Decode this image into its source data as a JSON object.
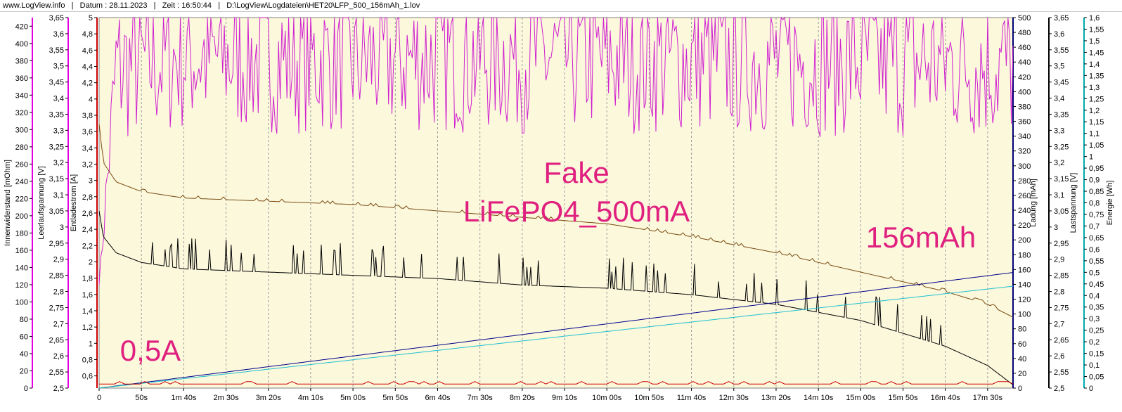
{
  "header": {
    "site": "www.LogView.info",
    "sep": "|",
    "date": "Datum : 28.11.2023",
    "time": "Zeit : 16:50:44",
    "path": "D:\\LogView\\Logdateien\\HET20\\LFP_500_156mAh_1.lov"
  },
  "chart_data": {
    "type": "line",
    "background": "#fbf8dc",
    "grid": "vertical dashed",
    "x_ticks": [
      "0",
      "50s",
      "1m 40s",
      "2m 30s",
      "3m 20s",
      "4m 10s",
      "5m 00s",
      "5m 50s",
      "6m 40s",
      "7m 30s",
      "8m 20s",
      "9m 10s",
      "10m 00s",
      "10m 50s",
      "11m 40s",
      "12m 30s",
      "13m 20s",
      "14m 10s",
      "15m 00s",
      "15m 50s",
      "16m 40s",
      "17m 30s"
    ],
    "x_range_s": [
      0,
      1080
    ],
    "axes": [
      {
        "id": "ir",
        "label": "Innenwiderstand [mOhm]",
        "color": "#e000e0",
        "side": "left",
        "range": [
          0,
          430
        ],
        "ticks": [
          "0",
          "20",
          "40",
          "60",
          "80",
          "100",
          "120",
          "140",
          "160",
          "180",
          "200",
          "220",
          "240",
          "260",
          "280",
          "300",
          "320",
          "340",
          "360",
          "380",
          "400",
          "420"
        ]
      },
      {
        "id": "ocv",
        "label": "Leerlaufspannung [V]",
        "color": "#e000e0",
        "side": "left",
        "range": [
          2.5,
          3.65
        ],
        "ticks": [
          "2,5",
          "2,55",
          "2,6",
          "2,65",
          "2,7",
          "2,75",
          "2,8",
          "2,85",
          "2,9",
          "2,95",
          "3",
          "3,05",
          "3,1",
          "3,15",
          "3,2",
          "3,25",
          "3,3",
          "3,35",
          "3,4",
          "3,45",
          "3,5",
          "3,55",
          "3,6",
          "3,65"
        ]
      },
      {
        "id": "cur",
        "label": "Entladestrom [A]",
        "color": "#cc0000",
        "side": "left",
        "range": [
          0.45,
          5
        ],
        "ticks": [
          "0,6",
          "0,8",
          "1",
          "1,2",
          "1,4",
          "1,6",
          "1,8",
          "2",
          "2,2",
          "2,4",
          "2,6",
          "2,8",
          "3",
          "3,2",
          "3,4",
          "3,6",
          "3,8",
          "4",
          "4,2",
          "4,4",
          "4,6",
          "4,8",
          "5"
        ]
      },
      {
        "id": "chg",
        "label": "Ladung [mAh]",
        "color": "#00007a",
        "side": "right",
        "range": [
          0,
          500
        ],
        "ticks": [
          "0",
          "20",
          "40",
          "60",
          "80",
          "100",
          "120",
          "140",
          "160",
          "180",
          "200",
          "220",
          "240",
          "260",
          "280",
          "300",
          "320",
          "340",
          "360",
          "380",
          "400",
          "420",
          "440",
          "460",
          "480",
          "500"
        ]
      },
      {
        "id": "vload",
        "label": "Lastspannung [V]",
        "color": "#000000",
        "side": "right",
        "range": [
          2.5,
          3.65
        ],
        "ticks": [
          "2,5",
          "2,55",
          "2,6",
          "2,65",
          "2,7",
          "2,75",
          "2,8",
          "2,85",
          "2,9",
          "2,95",
          "3",
          "3,05",
          "3,1",
          "3,15",
          "3,2",
          "3,25",
          "3,3",
          "3,35",
          "3,4",
          "3,45",
          "3,5",
          "3,55",
          "3,6",
          "3,65"
        ]
      },
      {
        "id": "en",
        "label": "Energie [Wh]",
        "color": "#00aaaa",
        "side": "right",
        "range": [
          0,
          1.6
        ],
        "ticks": [
          "0",
          "0,05",
          "0,1",
          "0,15",
          "0,2",
          "0,25",
          "0,3",
          "0,35",
          "0,4",
          "0,45",
          "0,5",
          "0,55",
          "0,6",
          "0,65",
          "0,7",
          "0,75",
          "0,8",
          "0,85",
          "0,9",
          "0,95",
          "1",
          "1,05",
          "1,1",
          "1,15",
          "1,2",
          "1,25",
          "1,3",
          "1,35",
          "1,4",
          "1,45",
          "1,5",
          "1,55",
          "1,6"
        ]
      }
    ],
    "series": [
      {
        "axis": "ir",
        "color": "#d020d0",
        "style": "noisy",
        "x": [
          0,
          20,
          100,
          300,
          500,
          700,
          900,
          1080
        ],
        "y": [
          120,
          370,
          385,
          380,
          385,
          380,
          380,
          375
        ],
        "noise": [
          0,
          90,
          90,
          85,
          90,
          85,
          90,
          90
        ]
      },
      {
        "axis": "vload",
        "color": "#7a4a10",
        "x": [
          0,
          5,
          20,
          50,
          100,
          200,
          300,
          400,
          500,
          600,
          700,
          800,
          900,
          1000,
          1050,
          1080
        ],
        "y": [
          3.32,
          3.2,
          3.14,
          3.11,
          3.09,
          3.08,
          3.07,
          3.05,
          3.03,
          3.01,
          2.97,
          2.92,
          2.86,
          2.8,
          2.76,
          2.72
        ]
      },
      {
        "axis": "vload",
        "color": "#000000",
        "style": "spiky",
        "x": [
          0,
          5,
          20,
          50,
          100,
          200,
          300,
          400,
          500,
          600,
          700,
          800,
          900,
          1000,
          1050,
          1080
        ],
        "y": [
          3.05,
          2.97,
          2.92,
          2.89,
          2.87,
          2.86,
          2.85,
          2.84,
          2.82,
          2.81,
          2.79,
          2.76,
          2.71,
          2.63,
          2.57,
          2.51
        ]
      },
      {
        "axis": "chg",
        "color": "#00008a",
        "x": [
          0,
          1080
        ],
        "y": [
          0,
          156
        ]
      },
      {
        "axis": "en",
        "color": "#20c0d0",
        "x": [
          0,
          1080
        ],
        "y": [
          0,
          0.44
        ]
      },
      {
        "axis": "cur",
        "color": "#cc0000",
        "style": "flat",
        "x": [
          0,
          1080
        ],
        "y": [
          0.5,
          0.5
        ]
      }
    ],
    "annotations": [
      {
        "text": "Fake",
        "color": "#e0207f"
      },
      {
        "text": "LiFePO4_500mA",
        "color": "#e0207f"
      },
      {
        "text": "156mAh",
        "color": "#e0207f"
      },
      {
        "text": "0,5A",
        "color": "#e0207f"
      }
    ]
  }
}
